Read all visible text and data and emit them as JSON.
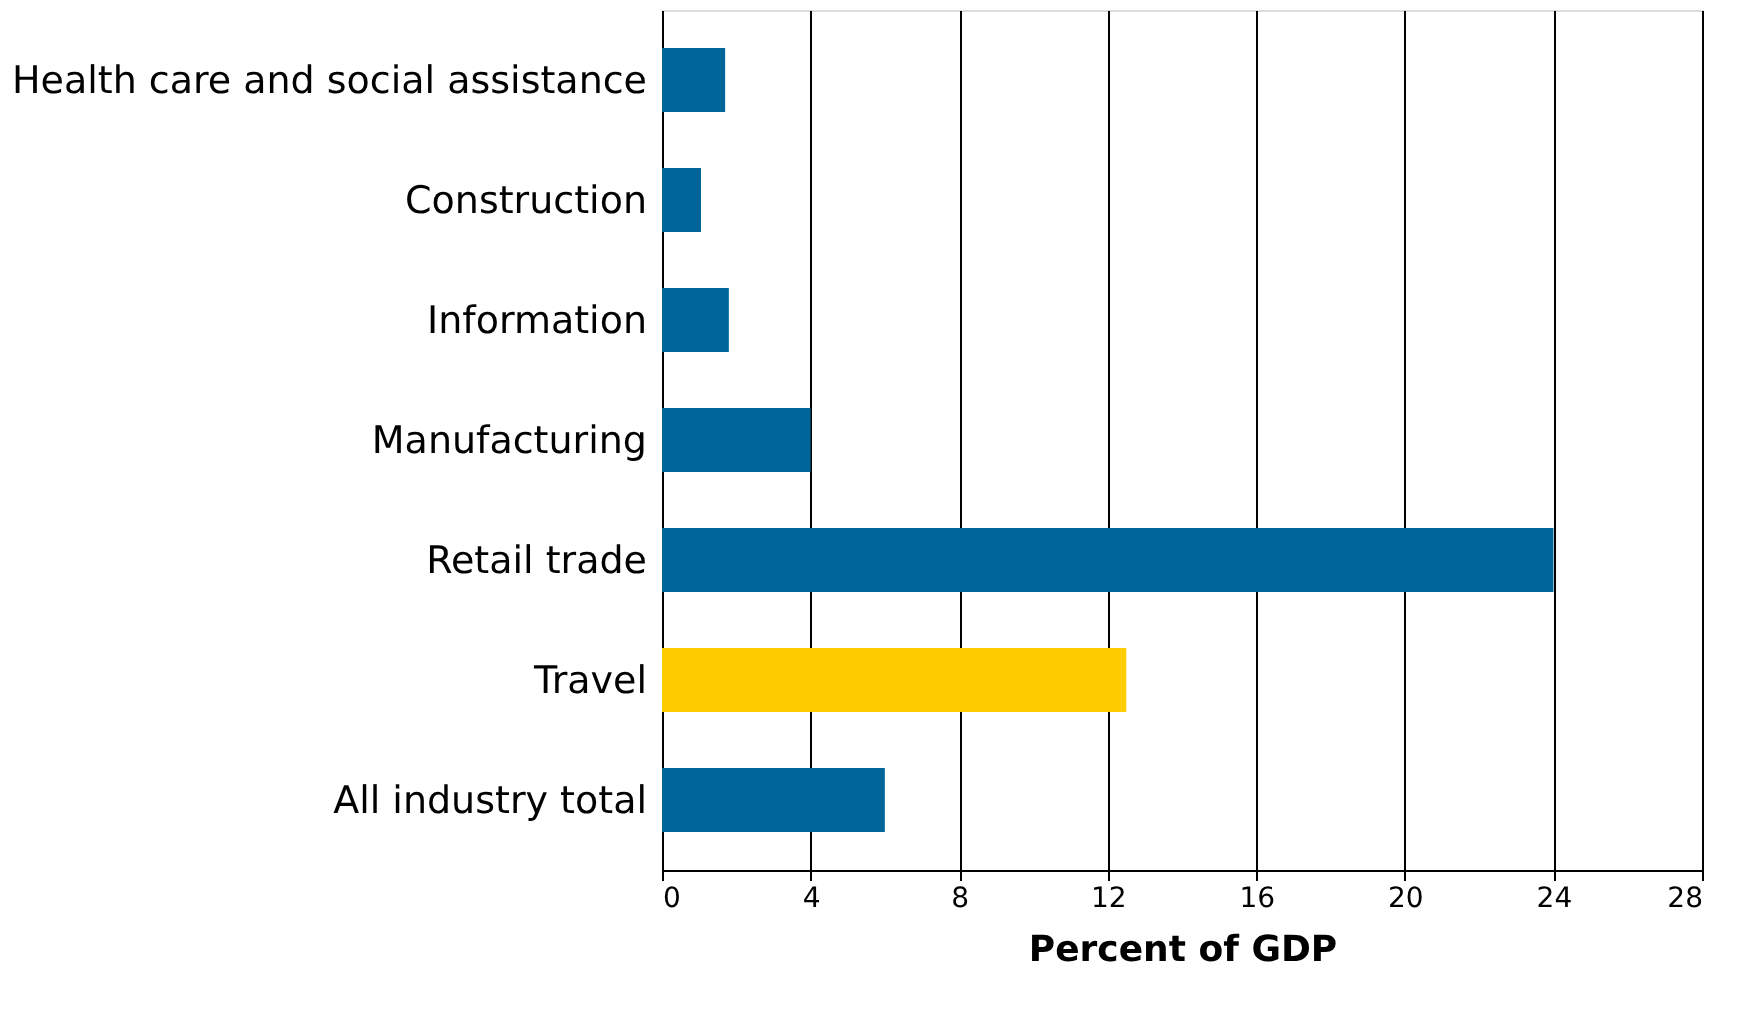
{
  "chart_data": {
    "type": "bar",
    "orientation": "horizontal",
    "categories": [
      "Health care and social assistance",
      "Construction",
      "Information",
      "Manufacturing",
      "Retail trade",
      "Travel",
      "All industry total"
    ],
    "values": [
      1.7,
      1.05,
      1.8,
      4.0,
      24.0,
      12.5,
      6.0
    ],
    "colors": [
      "#006699",
      "#006699",
      "#006699",
      "#006699",
      "#006699",
      "#ffcc00",
      "#006699"
    ],
    "xlabel": "Percent of GDP",
    "xlim": [
      0,
      28
    ],
    "xticks": [
      0,
      4,
      8,
      12,
      16,
      20,
      24,
      28
    ],
    "grid": "x"
  }
}
